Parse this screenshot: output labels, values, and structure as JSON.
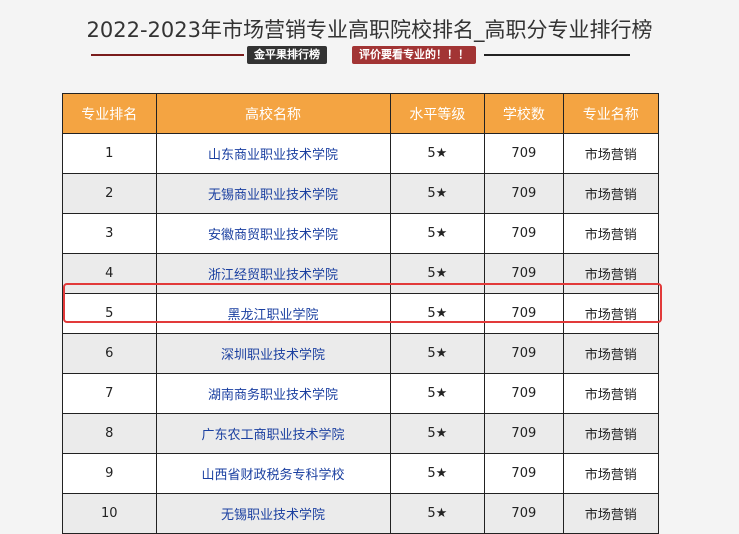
{
  "title": "2022-2023年市场营销专业高职院校排名_高职分专业排行榜",
  "badges": [
    "金平果排行榜",
    "评价要看专业的！！！"
  ],
  "colors": {
    "header": "#f4a442",
    "highlight": "#e23a3a",
    "link": "#1a3fa0"
  },
  "table": {
    "headers": [
      "专业排名",
      "高校名称",
      "水平等级",
      "学校数",
      "专业名称"
    ],
    "rows": [
      [
        "1",
        "山东商业职业技术学院",
        "5★",
        "709",
        "市场营销"
      ],
      [
        "2",
        "无锡商业职业技术学院",
        "5★",
        "709",
        "市场营销"
      ],
      [
        "3",
        "安徽商贸职业技术学院",
        "5★",
        "709",
        "市场营销"
      ],
      [
        "4",
        "浙江经贸职业技术学院",
        "5★",
        "709",
        "市场营销"
      ],
      [
        "5",
        "黑龙江职业学院",
        "5★",
        "709",
        "市场营销"
      ],
      [
        "6",
        "深圳职业技术学院",
        "5★",
        "709",
        "市场营销"
      ],
      [
        "7",
        "湖南商务职业技术学院",
        "5★",
        "709",
        "市场营销"
      ],
      [
        "8",
        "广东农工商职业技术学院",
        "5★",
        "709",
        "市场营销"
      ],
      [
        "9",
        "山西省财政税务专科学校",
        "5★",
        "709",
        "市场营销"
      ],
      [
        "10",
        "无锡职业技术学院",
        "5★",
        "709",
        "市场营销"
      ]
    ]
  },
  "highlighted_rank": "5"
}
